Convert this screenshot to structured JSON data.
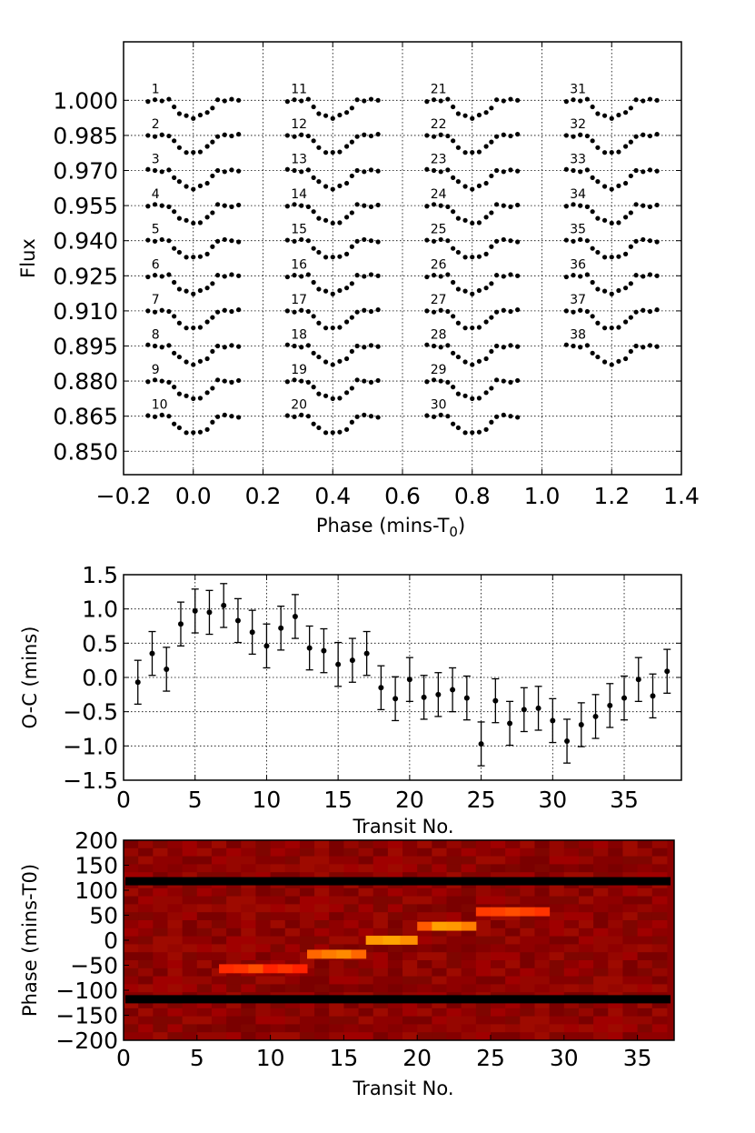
{
  "chart_data": [
    {
      "type": "scatter",
      "title": "",
      "xlabel": "Phase (mins-T",
      "xlabel_sub": "0",
      "xlabel_close": ")",
      "ylabel": "Flux",
      "xlim": [
        -0.2,
        1.4
      ],
      "ylim": [
        0.84,
        1.025
      ],
      "xticks": [
        -0.2,
        0.0,
        0.2,
        0.4,
        0.6,
        0.8,
        1.0,
        1.2,
        1.4
      ],
      "xtick_labels": [
        "−0.2",
        "0.0",
        "0.2",
        "0.4",
        "0.6",
        "0.8",
        "1.0",
        "1.2",
        "1.4"
      ],
      "yticks": [
        1.0,
        0.985,
        0.97,
        0.955,
        0.94,
        0.925,
        0.91,
        0.895,
        0.88,
        0.865,
        0.85
      ],
      "ytick_labels": [
        "1.000",
        "0.985",
        "0.970",
        "0.955",
        "0.940",
        "0.925",
        "0.910",
        "0.895",
        "0.880",
        "0.865",
        "0.850"
      ],
      "grid": true,
      "column_offsets": [
        0.0,
        0.4,
        0.8,
        1.2
      ],
      "rows_per_column": 10,
      "row_spacing": 0.015,
      "transit_phase": [
        -0.13,
        -0.11,
        -0.09,
        -0.07,
        -0.055,
        -0.04,
        -0.02,
        0.0,
        0.02,
        0.04,
        0.055,
        0.07,
        0.09,
        0.11,
        0.13
      ],
      "transit_depth": [
        0,
        0,
        0,
        0,
        0.0028,
        0.0052,
        0.0068,
        0.0075,
        0.0068,
        0.0052,
        0.0028,
        0,
        0,
        0,
        0
      ],
      "lightcurve_labels": [
        "1",
        "2",
        "3",
        "4",
        "5",
        "6",
        "7",
        "8",
        "9",
        "10",
        "11",
        "12",
        "13",
        "14",
        "15",
        "16",
        "17",
        "18",
        "19",
        "20",
        "21",
        "22",
        "23",
        "24",
        "25",
        "26",
        "27",
        "28",
        "29",
        "30",
        "31",
        "32",
        "33",
        "34",
        "35",
        "36",
        "37",
        "38"
      ]
    },
    {
      "type": "scatter",
      "title": "",
      "xlabel": "Transit No.",
      "ylabel": "O-C (mins)",
      "xlim": [
        0,
        39
      ],
      "ylim": [
        -1.5,
        1.5
      ],
      "xticks": [
        0,
        5,
        10,
        15,
        20,
        25,
        30,
        35
      ],
      "yticks": [
        1.5,
        1.0,
        0.5,
        0.0,
        -0.5,
        -1.0,
        -1.5
      ],
      "ytick_labels": [
        "1.5",
        "1.0",
        "0.5",
        "0.0",
        "−0.5",
        "−1.0",
        "−1.5"
      ],
      "grid": true,
      "x": [
        1,
        2,
        3,
        4,
        5,
        6,
        7,
        8,
        9,
        10,
        11,
        12,
        13,
        14,
        15,
        16,
        17,
        18,
        19,
        20,
        21,
        22,
        23,
        24,
        25,
        26,
        27,
        28,
        29,
        30,
        31,
        32,
        33,
        34,
        35,
        36,
        37,
        38
      ],
      "y": [
        -0.07,
        0.35,
        0.12,
        0.78,
        0.97,
        0.95,
        1.05,
        0.83,
        0.66,
        0.46,
        0.72,
        0.89,
        0.43,
        0.39,
        0.19,
        0.25,
        0.35,
        -0.15,
        -0.31,
        -0.03,
        -0.29,
        -0.25,
        -0.18,
        -0.3,
        -0.97,
        -0.34,
        -0.67,
        -0.47,
        -0.45,
        -0.63,
        -0.93,
        -0.69,
        -0.57,
        -0.41,
        -0.3,
        -0.03,
        -0.27,
        0.09
      ],
      "yerr": 0.32
    },
    {
      "type": "heatmap",
      "title": "",
      "xlabel": "Transit No.",
      "ylabel": "Phase (mins-T0)",
      "xlim": [
        0,
        37.5
      ],
      "ylim": [
        -200,
        200
      ],
      "xticks": [
        0,
        5,
        10,
        15,
        20,
        25,
        30,
        35
      ],
      "yticks": [
        200,
        150,
        100,
        50,
        0,
        -50,
        -100,
        -150,
        -200
      ],
      "ytick_labels": [
        "200",
        "150",
        "100",
        "50",
        "0",
        "−50",
        "−100",
        "−150",
        "−200"
      ],
      "colormap": "hot",
      "background_color": "#8b0000",
      "bright_band_bin": 2,
      "bright_band_segments": [
        {
          "from": 6.5,
          "to": 12.5,
          "phase_center": -57,
          "colors": [
            "#ff2a00",
            "#ff3300",
            "#ff4d00",
            "#ff2200",
            "#ff3300",
            "#ff2200"
          ]
        },
        {
          "from": 12.5,
          "to": 16.5,
          "phase_center": -28,
          "colors": [
            "#ff6600",
            "#ff7b00",
            "#ff8a00",
            "#ff6600"
          ]
        },
        {
          "from": 16.5,
          "to": 20,
          "phase_center": 0,
          "colors": [
            "#ff9900",
            "#ffa600",
            "#ff8f00"
          ]
        },
        {
          "from": 20,
          "to": 24,
          "phase_center": 28,
          "colors": [
            "#ff5a00",
            "#ffa000",
            "#ff9a00",
            "#ff7f00"
          ]
        },
        {
          "from": 24,
          "to": 29,
          "phase_center": 57,
          "colors": [
            "#ff3a00",
            "#ff4000",
            "#ff4d00",
            "#ff4000",
            "#ff3300"
          ]
        }
      ],
      "dark_lines_phase": [
        118,
        -118
      ]
    }
  ]
}
